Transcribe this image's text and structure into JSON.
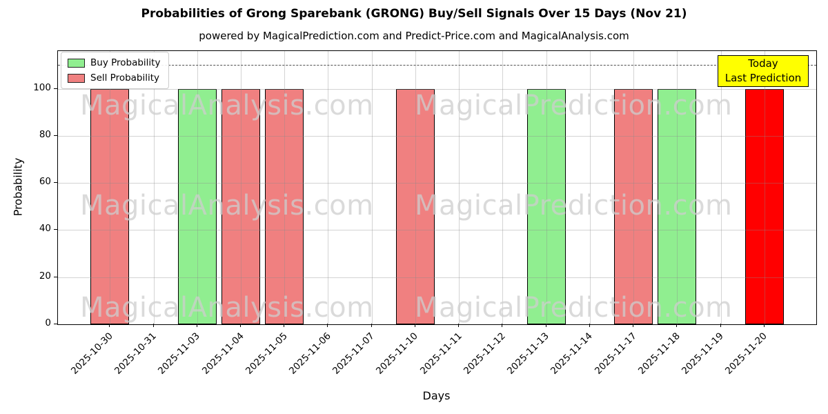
{
  "title": "Probabilities of Grong Sparebank (GRONG) Buy/Sell Signals Over 15 Days (Nov 21)",
  "subtitle": "powered by MagicalPrediction.com and Predict-Price.com and MagicalAnalysis.com",
  "axes": {
    "xlabel": "Days",
    "ylabel": "Probability",
    "yticks": [
      0,
      20,
      40,
      60,
      80,
      100
    ],
    "ylim": [
      0,
      116
    ]
  },
  "legend": {
    "items": [
      {
        "label": "Buy Probability",
        "color": "#90EE90"
      },
      {
        "label": "Sell Probability",
        "color": "#F08080"
      }
    ]
  },
  "annotation": {
    "line1": "Today",
    "line2": "Last Prediction",
    "bg_color": "#FFFF00"
  },
  "watermarks": {
    "left_text": "MagicalAnalysis.com",
    "right_text": "MagicalPrediction.com"
  },
  "chart_data": {
    "type": "bar",
    "title": "Probabilities of Grong Sparebank (GRONG) Buy/Sell Signals Over 15 Days (Nov 21)",
    "xlabel": "Days",
    "ylabel": "Probability",
    "ylim": [
      0,
      116
    ],
    "grid": true,
    "legend_position": "upper left",
    "dashed_line_y": 110,
    "categories": [
      "2025-10-30",
      "2025-10-31",
      "2025-11-03",
      "2025-11-04",
      "2025-11-05",
      "2025-11-06",
      "2025-11-07",
      "2025-11-10",
      "2025-11-11",
      "2025-11-12",
      "2025-11-13",
      "2025-11-14",
      "2025-11-17",
      "2025-11-18",
      "2025-11-19",
      "2025-11-20"
    ],
    "series": [
      {
        "name": "Buy Probability",
        "color": "#90EE90",
        "values": [
          null,
          null,
          100,
          null,
          null,
          null,
          null,
          null,
          null,
          null,
          100,
          null,
          null,
          100,
          null,
          null
        ]
      },
      {
        "name": "Sell Probability",
        "color": "#F08080",
        "values": [
          100,
          null,
          null,
          100,
          100,
          null,
          null,
          100,
          null,
          null,
          null,
          null,
          100,
          null,
          null,
          null
        ]
      },
      {
        "name": "Today Last Prediction (Sell)",
        "color": "#FF0000",
        "values": [
          null,
          null,
          null,
          null,
          null,
          null,
          null,
          null,
          null,
          null,
          null,
          null,
          null,
          null,
          null,
          100
        ]
      }
    ]
  }
}
